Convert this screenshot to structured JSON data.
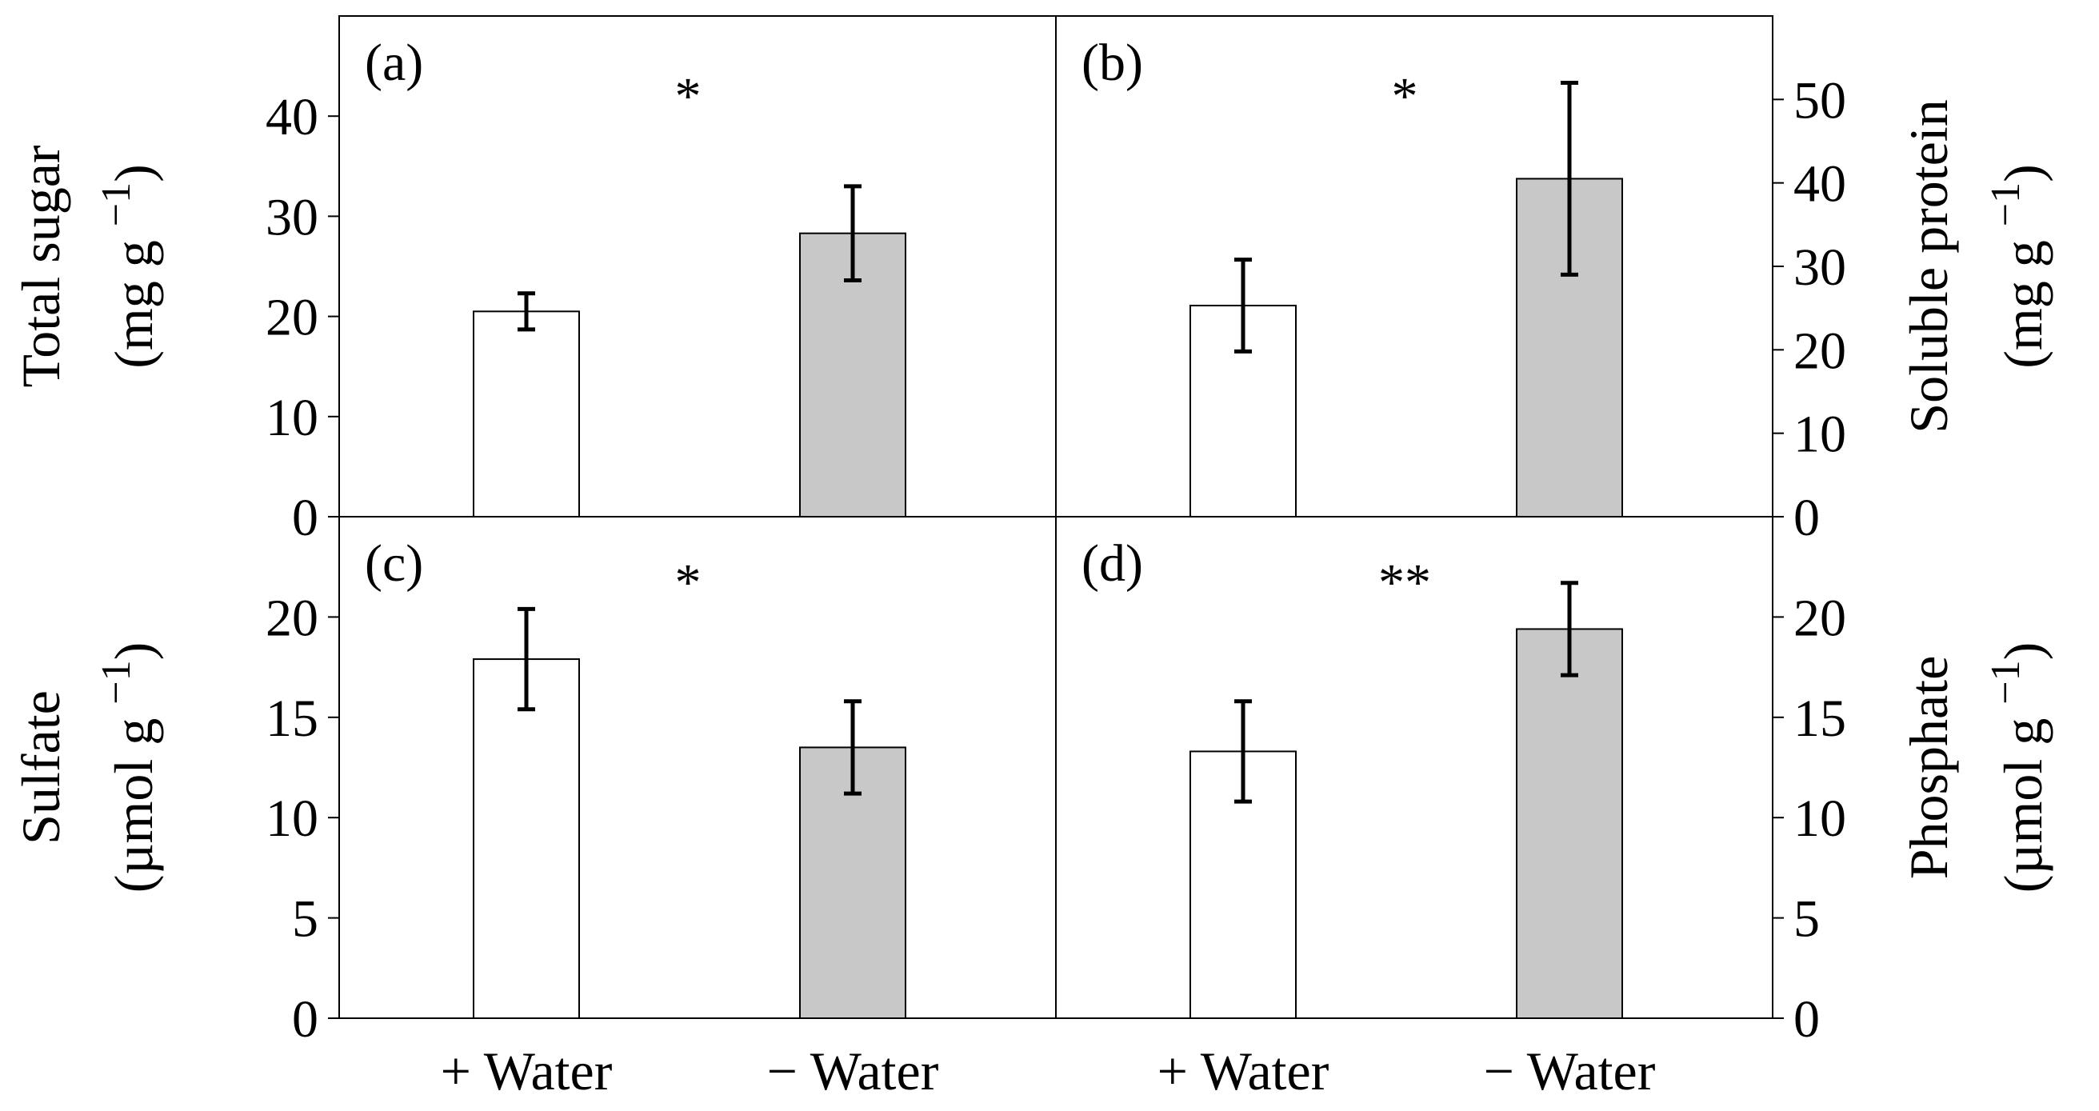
{
  "chart_data": [
    {
      "panel": "(a)",
      "type": "bar",
      "categories": [
        "+ Water",
        "− Water"
      ],
      "values": [
        20.5,
        28.3
      ],
      "errors": [
        1.8,
        4.7
      ],
      "colors": [
        "#ffffff",
        "#c8c8c8"
      ],
      "ylabel_line1": "Total sugar",
      "ylabel_line2": "(mg g",
      "ylabel_sup": "−1",
      "ylabel_close": ")",
      "ylim": [
        0,
        50
      ],
      "yticks": [
        0,
        10,
        20,
        30,
        40
      ],
      "significance": "*"
    },
    {
      "panel": "(b)",
      "type": "bar",
      "categories": [
        "+ Water",
        "− Water"
      ],
      "values": [
        25.3,
        40.5
      ],
      "errors": [
        5.5,
        11.5
      ],
      "colors": [
        "#ffffff",
        "#c8c8c8"
      ],
      "ylabel_line1": "Soluble protein",
      "ylabel_line2": "(mg g",
      "ylabel_sup": "−1",
      "ylabel_close": ")",
      "ylim": [
        0,
        60
      ],
      "yticks": [
        0,
        10,
        20,
        30,
        40,
        50
      ],
      "significance": "*"
    },
    {
      "panel": "(c)",
      "type": "bar",
      "categories": [
        "+ Water",
        "− Water"
      ],
      "values": [
        17.9,
        13.5
      ],
      "errors": [
        2.5,
        2.3
      ],
      "colors": [
        "#ffffff",
        "#c8c8c8"
      ],
      "ylabel_line1": "Sulfate",
      "ylabel_line2": "(µmol g",
      "ylabel_sup": "−1",
      "ylabel_close": ")",
      "ylim": [
        0,
        25
      ],
      "yticks": [
        0,
        5,
        10,
        15,
        20
      ],
      "significance": "*"
    },
    {
      "panel": "(d)",
      "type": "bar",
      "categories": [
        "+ Water",
        "− Water"
      ],
      "values": [
        13.3,
        19.4
      ],
      "errors": [
        2.5,
        2.3
      ],
      "colors": [
        "#ffffff",
        "#c8c8c8"
      ],
      "ylabel_line1": "Phosphate",
      "ylabel_line2": "(µmol g",
      "ylabel_sup": "−1",
      "ylabel_close": ")",
      "ylim": [
        0,
        25
      ],
      "yticks": [
        0,
        5,
        10,
        15,
        20
      ],
      "significance": "**"
    }
  ],
  "x_categories": [
    "+ Water",
    "− Water",
    "+ Water",
    "− Water"
  ]
}
